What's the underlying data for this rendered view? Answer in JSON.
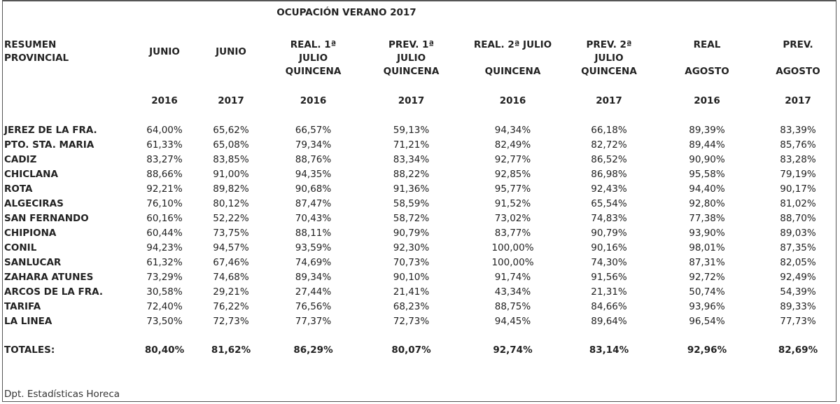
{
  "title": "OCUPACIÓN VERANO 2017",
  "header": {
    "label": [
      "RESUMEN",
      "PROVINCIAL"
    ],
    "columns": [
      {
        "lines": [
          "JUNIO"
        ],
        "year": "2016"
      },
      {
        "lines": [
          "JUNIO"
        ],
        "year": "2017"
      },
      {
        "lines": [
          "REAL. 1ª",
          "JULIO",
          "QUINCENA"
        ],
        "year": "2016"
      },
      {
        "lines": [
          "PREV. 1ª",
          "JULIO",
          "QUINCENA"
        ],
        "year": "2017"
      },
      {
        "lines": [
          "REAL. 2ª JULIO",
          "",
          "QUINCENA"
        ],
        "year": "2016"
      },
      {
        "lines": [
          "PREV. 2ª",
          "JULIO",
          "QUINCENA"
        ],
        "year": "2017"
      },
      {
        "lines": [
          "REAL",
          "",
          "AGOSTO"
        ],
        "year": "2016"
      },
      {
        "lines": [
          "PREV.",
          "",
          "AGOSTO"
        ],
        "year": "2017"
      }
    ]
  },
  "rows": [
    {
      "name": "JEREZ DE LA FRA.",
      "values": [
        "64,00%",
        "65,62%",
        "66,57%",
        "59,13%",
        "94,34%",
        "66,18%",
        "89,39%",
        "83,39%"
      ]
    },
    {
      "name": "PTO. STA. MARIA",
      "values": [
        "61,33%",
        "65,08%",
        "79,34%",
        "71,21%",
        "82,49%",
        "82,72%",
        "89,44%",
        "85,76%"
      ]
    },
    {
      "name": "CADIZ",
      "values": [
        "83,27%",
        "83,85%",
        "88,76%",
        "83,34%",
        "92,77%",
        "86,52%",
        "90,90%",
        "83,28%"
      ]
    },
    {
      "name": "CHICLANA",
      "values": [
        "88,66%",
        "91,00%",
        "94,35%",
        "88,22%",
        "92,85%",
        "86,98%",
        "95,58%",
        "79,19%"
      ]
    },
    {
      "name": "ROTA",
      "values": [
        "92,21%",
        "89,82%",
        "90,68%",
        "91,36%",
        "95,77%",
        "92,43%",
        "94,40%",
        "90,17%"
      ]
    },
    {
      "name": "ALGECIRAS",
      "values": [
        "76,10%",
        "80,12%",
        "87,47%",
        "58,59%",
        "91,52%",
        "65,54%",
        "92,80%",
        "81,02%"
      ]
    },
    {
      "name": "SAN FERNANDO",
      "values": [
        "60,16%",
        "52,22%",
        "70,43%",
        "58,72%",
        "73,02%",
        "74,83%",
        "77,38%",
        "88,70%"
      ]
    },
    {
      "name": "CHIPIONA",
      "values": [
        "60,44%",
        "73,75%",
        "88,11%",
        "90,79%",
        "83,77%",
        "90,79%",
        "93,90%",
        "89,03%"
      ]
    },
    {
      "name": "CONIL",
      "values": [
        "94,23%",
        "94,57%",
        "93,59%",
        "92,30%",
        "100,00%",
        "90,16%",
        "98,01%",
        "87,35%"
      ]
    },
    {
      "name": "SANLUCAR",
      "values": [
        "61,32%",
        "67,46%",
        "74,69%",
        "70,73%",
        "100,00%",
        "74,30%",
        "87,31%",
        "82,05%"
      ]
    },
    {
      "name": "ZAHARA ATUNES",
      "values": [
        "73,29%",
        "74,68%",
        "89,34%",
        "90,10%",
        "91,74%",
        "91,56%",
        "92,72%",
        "92,49%"
      ]
    },
    {
      "name": "ARCOS DE LA FRA.",
      "values": [
        "30,58%",
        "29,21%",
        "27,44%",
        "21,41%",
        "43,34%",
        "21,31%",
        "50,74%",
        "54,39%"
      ]
    },
    {
      "name": "TARIFA",
      "values": [
        "72,40%",
        "76,22%",
        "76,56%",
        "68,23%",
        "88,75%",
        "84,66%",
        "93,96%",
        "89,33%"
      ]
    },
    {
      "name": "LA LINEA",
      "values": [
        "73,50%",
        "72,73%",
        "77,37%",
        "72,73%",
        "94,45%",
        "89,64%",
        "96,54%",
        "77,73%"
      ]
    }
  ],
  "totals": {
    "name": "TOTALES:",
    "values": [
      "80,40%",
      "81,62%",
      "86,29%",
      "80,07%",
      "92,74%",
      "83,14%",
      "92,96%",
      "82,69%"
    ]
  },
  "footer": "Dpt. Estadísticas Horeca"
}
